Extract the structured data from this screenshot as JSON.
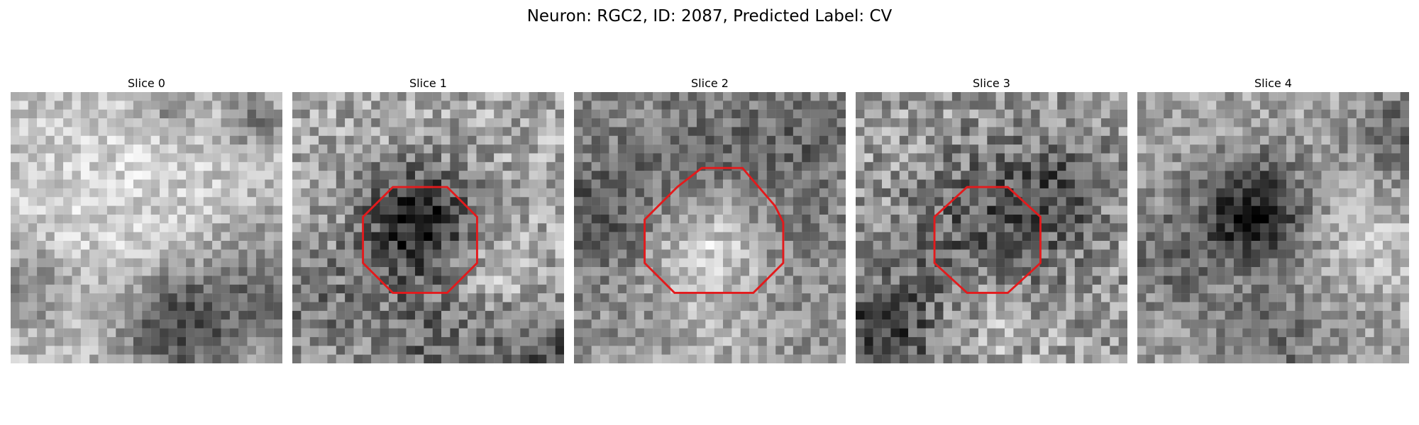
{
  "figure": {
    "title": "Neuron: RGC2, ID: 2087, Predicted Label: CV"
  },
  "panels": [
    {
      "title": "Slice 0",
      "roi": false
    },
    {
      "title": "Slice 1",
      "roi": true
    },
    {
      "title": "Slice 2",
      "roi": true
    },
    {
      "title": "Slice 3",
      "roi": true
    },
    {
      "title": "Slice 4",
      "roi": false
    }
  ],
  "colors": {
    "roi_outline": "#e31a1c",
    "colormap": "grayscale"
  }
}
